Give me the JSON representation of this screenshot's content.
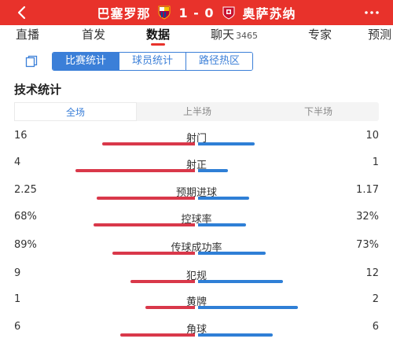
{
  "header": {
    "home_team": "巴塞罗那",
    "score": "1 - 0",
    "away_team": "奥萨苏纳",
    "colors": {
      "bar": "#e8322b"
    },
    "icons": [
      "back-icon",
      "barcelona-crest-icon",
      "osasuna-crest-icon",
      "more-icon"
    ]
  },
  "tabs": [
    {
      "label": "直播",
      "count": ""
    },
    {
      "label": "首发",
      "count": ""
    },
    {
      "label": "数据",
      "count": "",
      "active": true
    },
    {
      "label": "聊天",
      "count": "3465"
    },
    {
      "label": "专家",
      "count": ""
    },
    {
      "label": "预测",
      "count": ""
    }
  ],
  "subtabs": [
    {
      "label": "比赛统计",
      "active": true
    },
    {
      "label": "球员统计"
    },
    {
      "label": "路径热区"
    }
  ],
  "section_title": "技术统计",
  "periods": [
    {
      "label": "全场",
      "active": true
    },
    {
      "label": "上半场"
    },
    {
      "label": "下半场"
    }
  ],
  "stats": [
    {
      "label": "射门",
      "home": "16",
      "away": "10",
      "home_share": 0.62,
      "away_share": 0.38
    },
    {
      "label": "射正",
      "home": "4",
      "away": "1",
      "home_share": 0.8,
      "away_share": 0.2
    },
    {
      "label": "预期进球",
      "home": "2.25",
      "away": "1.17",
      "home_share": 0.66,
      "away_share": 0.34
    },
    {
      "label": "控球率",
      "home": "68%",
      "away": "32%",
      "home_share": 0.68,
      "away_share": 0.32
    },
    {
      "label": "传球成功率",
      "home": "89%",
      "away": "73%",
      "home_share": 0.55,
      "away_share": 0.45
    },
    {
      "label": "犯规",
      "home": "9",
      "away": "12",
      "home_share": 0.43,
      "away_share": 0.57
    },
    {
      "label": "黄牌",
      "home": "1",
      "away": "2",
      "home_share": 0.33,
      "away_share": 0.67
    },
    {
      "label": "角球",
      "home": "6",
      "away": "6",
      "home_share": 0.5,
      "away_share": 0.5
    }
  ],
  "colors": {
    "home_bar": "#d9384a",
    "away_bar": "#2f7fd6",
    "accent": "#3b7fd8"
  }
}
